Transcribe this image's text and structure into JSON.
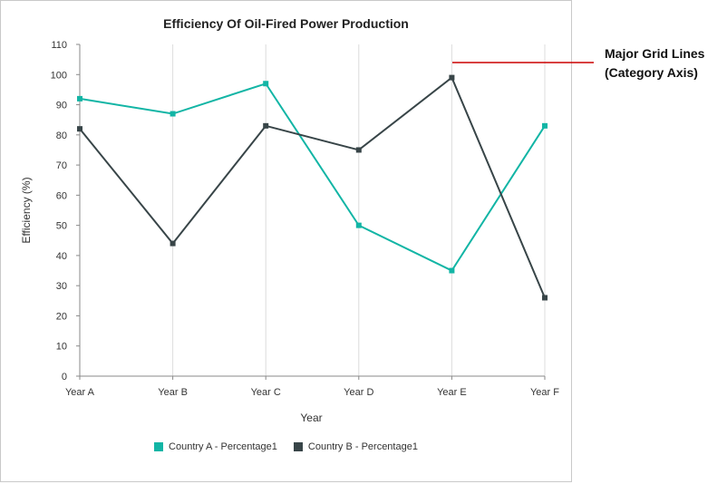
{
  "chart_data": {
    "type": "line",
    "title": "Efficiency Of Oil-Fired Power Production",
    "xlabel": "Year",
    "ylabel": "Efficiency (%)",
    "categories": [
      "Year A",
      "Year B",
      "Year C",
      "Year D",
      "Year E",
      "Year F"
    ],
    "ylim": [
      0,
      110
    ],
    "yticks": [
      0,
      10,
      20,
      30,
      40,
      50,
      60,
      70,
      80,
      90,
      100,
      110
    ],
    "grid": "vertical major grid lines on category axis",
    "legend_position": "bottom",
    "series": [
      {
        "name": "Country A - Percentage1",
        "color": "#12b5a5",
        "values": [
          92,
          87,
          97,
          50,
          35,
          83
        ]
      },
      {
        "name": "Country B - Percentage1",
        "color": "#384548",
        "values": [
          82,
          44,
          83,
          75,
          99,
          26
        ]
      }
    ]
  },
  "annotation": {
    "line1": "Major Grid Lines",
    "line2": "(Category Axis)",
    "pointer_color": "#cc0000"
  }
}
